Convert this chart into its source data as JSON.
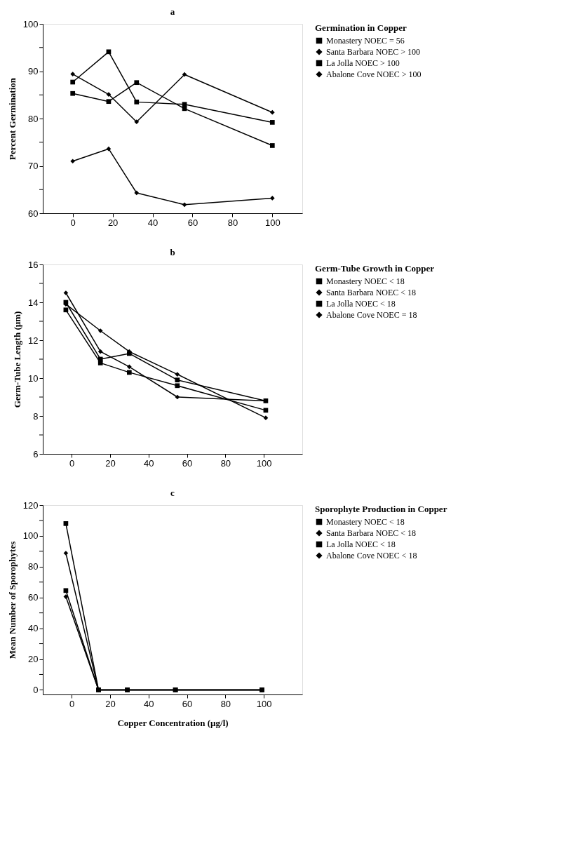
{
  "chart_data": [
    {
      "type": "line",
      "title": "a",
      "ylabel": "Percent Germination",
      "legend_title": "Germination in Copper",
      "legend": "right",
      "marker": "square",
      "line_style": "solid",
      "grid": false,
      "x": [
        0,
        18,
        32,
        56,
        100
      ],
      "xlim": [
        -15,
        115
      ],
      "xticks": [
        0,
        20,
        40,
        60,
        80,
        100
      ],
      "ylim": [
        60,
        100
      ],
      "yticks": [
        60,
        {
          "value": 65,
          "label": null
        },
        70,
        {
          "value": 75,
          "label": null
        },
        80,
        {
          "value": 85,
          "label": null
        },
        90,
        {
          "value": 95,
          "label": null
        },
        100
      ],
      "series": [
        {
          "name": "Monastery NOEC = 56",
          "color": "#000000",
          "marker": "square",
          "values": [
            85.3,
            83.6,
            87.6,
            82.1,
            74.3
          ]
        },
        {
          "name": "Santa Barbara NOEC > 100",
          "color": "#000000",
          "marker": "diamond",
          "values": [
            71.0,
            73.6,
            64.3,
            61.8,
            63.2
          ]
        },
        {
          "name": "La Jolla  NOEC > 100",
          "color": "#000000",
          "marker": "square",
          "values": [
            87.7,
            94.1,
            83.5,
            83.0,
            79.2
          ]
        },
        {
          "name": "Abalone Cove NOEC > 100",
          "color": "#000000",
          "marker": "diamond",
          "values": [
            89.4,
            85.1,
            79.3,
            89.3,
            81.3
          ]
        }
      ]
    },
    {
      "type": "line",
      "title": "b",
      "ylabel": "Germ-Tube Length (µm)",
      "legend_title": "Germ-Tube Growth in Copper",
      "legend": "right",
      "marker": "square",
      "line_style": "solid",
      "grid": false,
      "x": [
        -3,
        15,
        30,
        55,
        101
      ],
      "xlim": [
        -15,
        120
      ],
      "xticks": [
        0,
        20,
        40,
        60,
        80,
        100
      ],
      "ylim": [
        6,
        16
      ],
      "yticks": [
        6,
        {
          "value": 7,
          "label": null
        },
        8,
        {
          "value": 9,
          "label": null
        },
        10,
        {
          "value": 11,
          "label": null
        },
        12,
        {
          "value": 13,
          "label": null
        },
        14,
        {
          "value": 15,
          "label": null
        },
        16
      ],
      "series": [
        {
          "name": "Monastery NOEC < 18",
          "color": "#000000",
          "marker": "square",
          "values": [
            13.6,
            10.8,
            10.3,
            9.6,
            8.3
          ]
        },
        {
          "name": "Santa Barbara NOEC < 18",
          "color": "#000000",
          "marker": "diamond",
          "values": [
            14.5,
            11.4,
            10.6,
            9.0,
            8.8
          ]
        },
        {
          "name": "La Jolla NOEC < 18",
          "color": "#000000",
          "marker": "square",
          "values": [
            14.0,
            11.0,
            11.3,
            9.9,
            8.8
          ]
        },
        {
          "name": "Abalone Cove NOEC = 18",
          "color": "#000000",
          "marker": "diamond",
          "values": [
            13.9,
            12.5,
            11.4,
            10.2,
            7.9
          ]
        }
      ]
    },
    {
      "type": "line",
      "title": "c",
      "xlabel": "Copper Concentration (µg/l)",
      "ylabel": "Mean Number of Sporophytes",
      "legend_title": "Sporophyte Production in Copper",
      "legend": "right",
      "marker": "square",
      "line_style": "solid",
      "grid": false,
      "x": [
        -3,
        14,
        29,
        54,
        99
      ],
      "xlim": [
        -15,
        120
      ],
      "xticks": [
        0,
        20,
        40,
        60,
        80,
        100
      ],
      "ylim": [
        -3,
        120
      ],
      "yticks": [
        0,
        {
          "value": 10,
          "label": null
        },
        20,
        {
          "value": 30,
          "label": null
        },
        40,
        {
          "value": 50,
          "label": null
        },
        60,
        {
          "value": 70,
          "label": null
        },
        80,
        {
          "value": 90,
          "label": null
        },
        100,
        {
          "value": 110,
          "label": null
        },
        120
      ],
      "series": [
        {
          "name": "Monastery NOEC < 18",
          "color": "#000000",
          "marker": "square",
          "values": [
            64.5,
            0,
            0,
            0,
            0
          ]
        },
        {
          "name": "Santa Barbara NOEC < 18",
          "color": "#000000",
          "marker": "diamond",
          "values": [
            60.5,
            0,
            0,
            0,
            0
          ]
        },
        {
          "name": "La Jolla NOEC < 18",
          "color": "#000000",
          "marker": "square",
          "values": [
            108,
            0,
            0,
            0,
            0
          ]
        },
        {
          "name": "Abalone Cove NOEC < 18",
          "color": "#000000",
          "marker": "diamond",
          "values": [
            88.8,
            0,
            0,
            0,
            0
          ]
        }
      ]
    }
  ]
}
